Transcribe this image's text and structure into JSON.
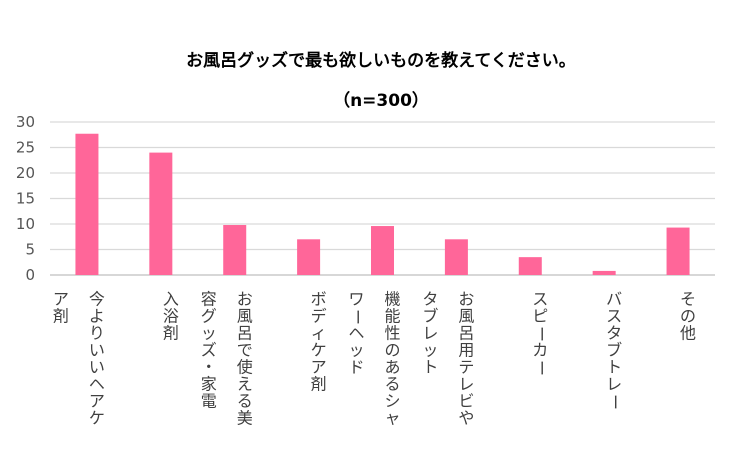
{
  "chart_data": {
    "type": "bar",
    "title": "お風呂グッズで最も欲しいものを教えてください。",
    "subtitle": "（n=300）",
    "categories": [
      "今よりいいヘアケア剤",
      "入浴剤",
      "お風呂で使える美容グッズ・家電",
      "ボディケア剤",
      "機能性のあるシャワーヘッド",
      "お風呂用テレビやタブレット",
      "スピーカー",
      "バスタブトレー",
      "その他"
    ],
    "category_lines": [
      [
        "今よりいいヘアケ",
        "ア剤"
      ],
      [
        "入浴剤"
      ],
      [
        "お風呂で使える美",
        "容グッズ・家電"
      ],
      [
        "ボディケア剤"
      ],
      [
        "機能性のあるシャ",
        "ワーヘッド"
      ],
      [
        "お風呂用テレビや",
        "タブレット"
      ],
      [
        "スピーカー"
      ],
      [
        "バスタブトレー"
      ],
      [
        "その他"
      ]
    ],
    "values": [
      27.7,
      24.0,
      9.8,
      7.0,
      9.6,
      7.0,
      3.5,
      0.8,
      9.3
    ],
    "ylim": [
      0,
      30
    ],
    "yticks": [
      0,
      5,
      10,
      15,
      20,
      25,
      30
    ],
    "grid": true,
    "bar_color": "#FF6699",
    "grid_color": "#D9D9D9",
    "axis_color": "#BFBFBF"
  }
}
